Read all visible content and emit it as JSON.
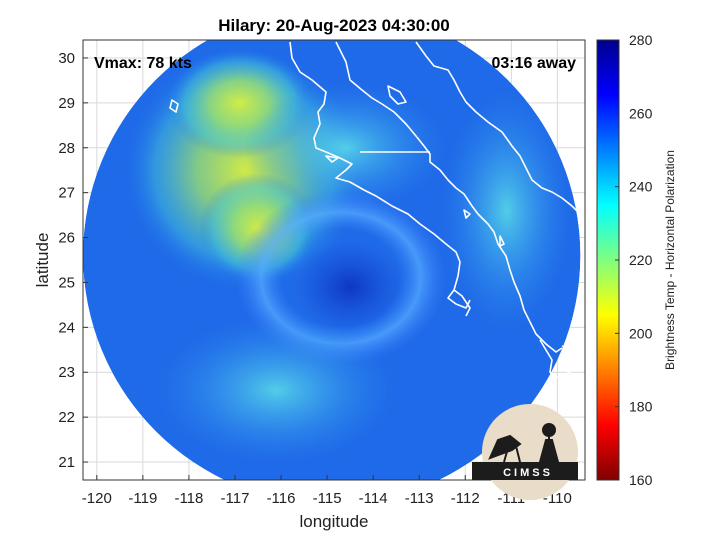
{
  "chart_data": {
    "type": "heatmap",
    "title": "Hilary: 20-Aug-2023 04:30:00",
    "xlabel": "longitude",
    "ylabel": "latitude",
    "xlim": [
      -120.3,
      -109.4
    ],
    "ylim": [
      20.6,
      30.4
    ],
    "xticks": [
      -120,
      -119,
      -118,
      -117,
      -116,
      -115,
      -114,
      -113,
      -112,
      -111,
      -110
    ],
    "yticks": [
      21,
      22,
      23,
      24,
      25,
      26,
      27,
      28,
      29,
      30
    ],
    "grid": true,
    "colorbar": {
      "label": "Brightness Temp - Horizontal Polarization",
      "min": 160,
      "max": 280,
      "ticks": [
        160,
        180,
        200,
        220,
        240,
        260,
        280
      ],
      "colormap": "jet"
    },
    "swath": {
      "center_lon": -114.9,
      "center_lat": 25.6,
      "radius_deg": 5.4
    },
    "storm_center": {
      "lon": -115.0,
      "lat": 25.0
    },
    "annotations": {
      "vmax": "Vmax: 78 kts",
      "time_offset": "03:16 away"
    }
  },
  "logo": {
    "text": "CIMSS"
  },
  "colors": {
    "coast": "#ffffff",
    "background": "#ffffff",
    "grid": "#d9d9d9"
  }
}
